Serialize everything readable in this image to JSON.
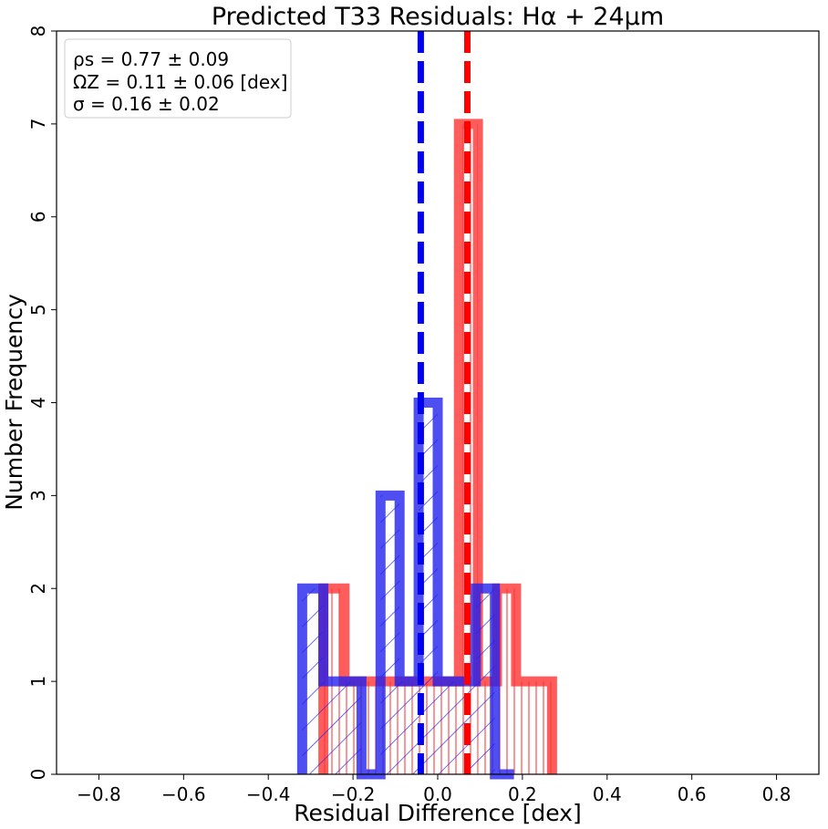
{
  "chart_data": {
    "type": "histogram",
    "title": "Predicted T33 Residuals: Hα + 24μm",
    "xlabel": "Residual Difference [dex]",
    "ylabel": "Number Frequency",
    "xlim": [
      -0.9,
      0.9
    ],
    "ylim": [
      0,
      8
    ],
    "xticks": [
      -0.8,
      -0.6,
      -0.4,
      -0.2,
      0.0,
      0.2,
      0.4,
      0.6,
      0.8
    ],
    "xtick_labels": [
      "−0.8",
      "−0.6",
      "−0.4",
      "−0.2",
      "0.0",
      "0.2",
      "0.4",
      "0.6",
      "0.8"
    ],
    "yticks": [
      0,
      1,
      2,
      3,
      4,
      5,
      6,
      7,
      8
    ],
    "ytick_labels": [
      "0",
      "1",
      "2",
      "3",
      "4",
      "5",
      "6",
      "7",
      "8"
    ],
    "grid": false,
    "legend_position": "top-left",
    "stats_box": [
      "ρs = 0.77 ± 0.09",
      "ΩZ = 0.11 ± 0.06 [dex]",
      "σ = 0.16 ± 0.02"
    ],
    "series": [
      {
        "color": "#ff3333",
        "hatch": "vertical",
        "bin_edges": [
          -0.27,
          -0.22,
          -0.18,
          -0.13,
          -0.085,
          -0.04,
          0.005,
          0.05,
          0.095,
          0.14,
          0.185,
          0.23,
          0.27
        ],
        "counts": [
          2,
          1,
          1,
          1,
          1,
          1,
          1,
          7,
          1,
          2,
          1,
          1
        ],
        "median_line": 0.07
      },
      {
        "color": "#2222ee",
        "hatch": "diagonal",
        "bin_edges": [
          -0.32,
          -0.27,
          -0.23,
          -0.18,
          -0.135,
          -0.09,
          -0.045,
          0.0,
          0.045,
          0.09,
          0.135,
          0.18
        ],
        "counts": [
          2,
          1,
          1,
          0,
          3,
          1,
          4,
          1,
          1,
          2,
          0
        ],
        "median_line": -0.04
      }
    ]
  }
}
